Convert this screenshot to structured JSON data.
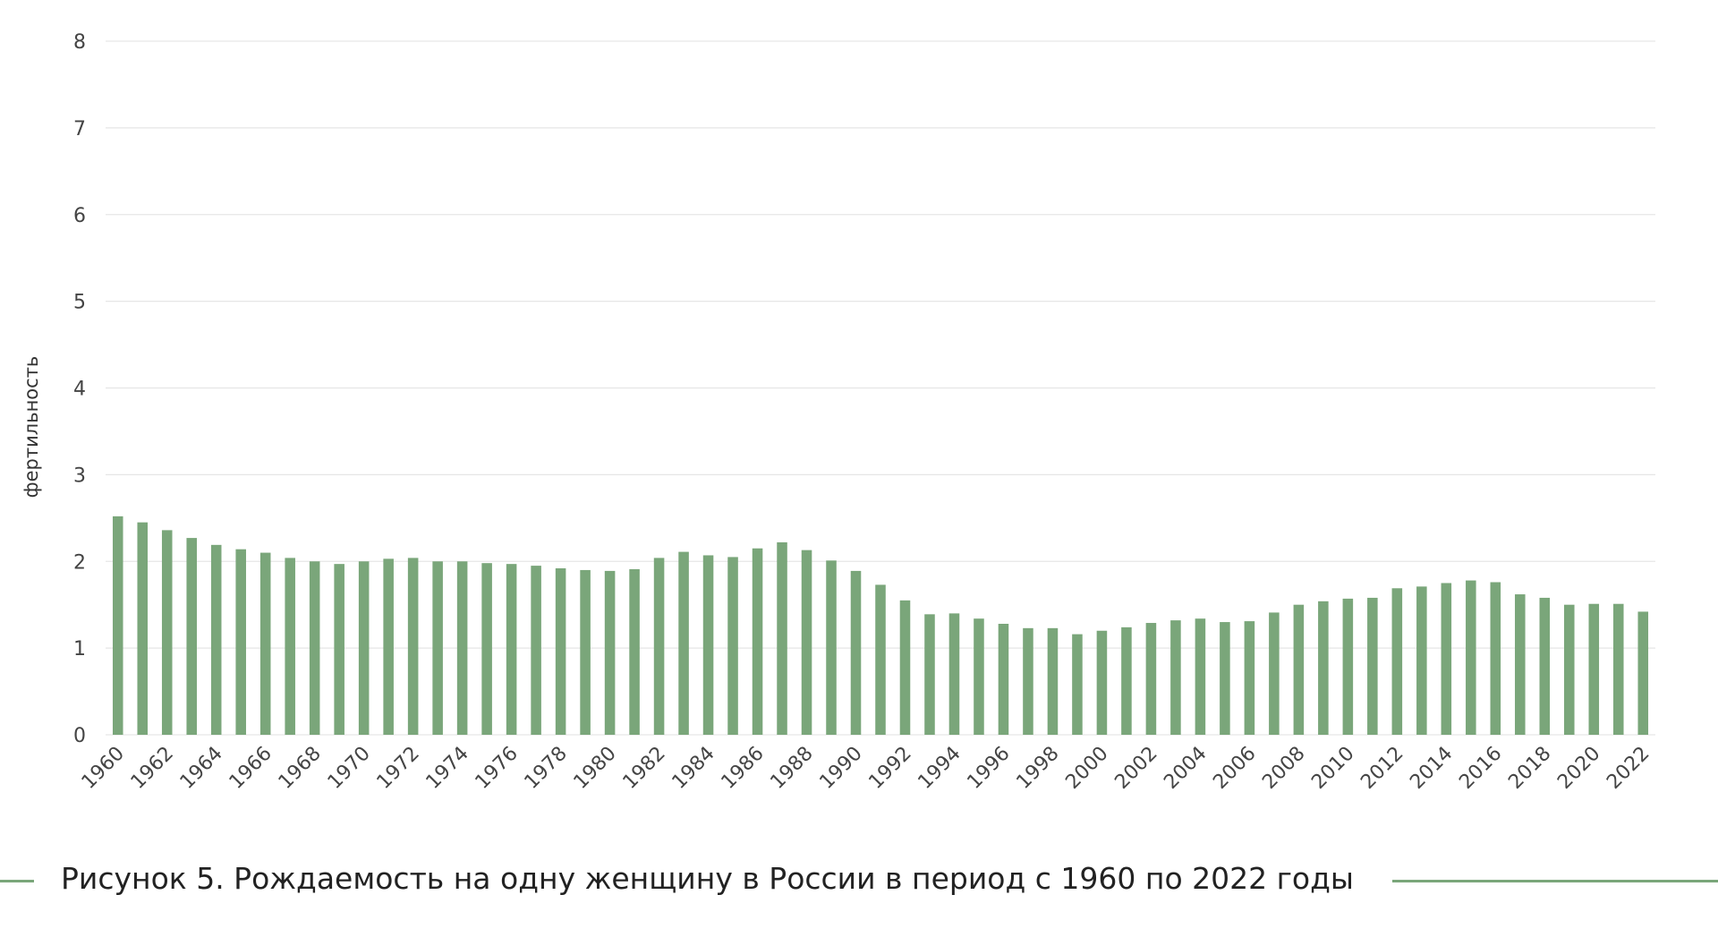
{
  "caption": "Рисунок 5. Рождаемость на одну женщину в России в период с 1960 по 2022 годы",
  "colors": {
    "bar": "#7aa67a",
    "grid": "#e6e6e6",
    "accent_line": "#7aa67a"
  },
  "chart_data": {
    "type": "bar",
    "title": "",
    "xlabel": "",
    "ylabel": "фертильность",
    "ylim": [
      0,
      8
    ],
    "yticks": [
      0,
      1,
      2,
      3,
      4,
      5,
      6,
      7,
      8
    ],
    "grid": true,
    "categories": [
      1960,
      1961,
      1962,
      1963,
      1964,
      1965,
      1966,
      1967,
      1968,
      1969,
      1970,
      1971,
      1972,
      1973,
      1974,
      1975,
      1976,
      1977,
      1978,
      1979,
      1980,
      1981,
      1982,
      1983,
      1984,
      1985,
      1986,
      1987,
      1988,
      1989,
      1990,
      1991,
      1992,
      1993,
      1994,
      1995,
      1996,
      1997,
      1998,
      1999,
      2000,
      2001,
      2002,
      2003,
      2004,
      2005,
      2006,
      2007,
      2008,
      2009,
      2010,
      2011,
      2012,
      2013,
      2014,
      2015,
      2016,
      2017,
      2018,
      2019,
      2020,
      2021,
      2022
    ],
    "xtick_labels": [
      "1960",
      "1962",
      "1964",
      "1966",
      "1968",
      "1970",
      "1972",
      "1974",
      "1976",
      "1978",
      "1980",
      "1982",
      "1984",
      "1986",
      "1988",
      "1990",
      "1992",
      "1994",
      "1996",
      "1998",
      "2000",
      "2002",
      "2004",
      "2006",
      "2008",
      "2010",
      "2012",
      "2014",
      "2016",
      "2018",
      "2020",
      "2022"
    ],
    "values": [
      2.52,
      2.45,
      2.36,
      2.27,
      2.19,
      2.14,
      2.1,
      2.04,
      2.0,
      1.97,
      2.0,
      2.03,
      2.04,
      2.0,
      2.0,
      1.98,
      1.97,
      1.95,
      1.92,
      1.9,
      1.89,
      1.91,
      2.04,
      2.11,
      2.07,
      2.05,
      2.15,
      2.22,
      2.13,
      2.01,
      1.89,
      1.73,
      1.55,
      1.39,
      1.4,
      1.34,
      1.28,
      1.23,
      1.23,
      1.16,
      1.2,
      1.24,
      1.29,
      1.32,
      1.34,
      1.3,
      1.31,
      1.41,
      1.5,
      1.54,
      1.57,
      1.58,
      1.69,
      1.71,
      1.75,
      1.78,
      1.76,
      1.62,
      1.58,
      1.5,
      1.51,
      1.51,
      1.42
    ]
  }
}
